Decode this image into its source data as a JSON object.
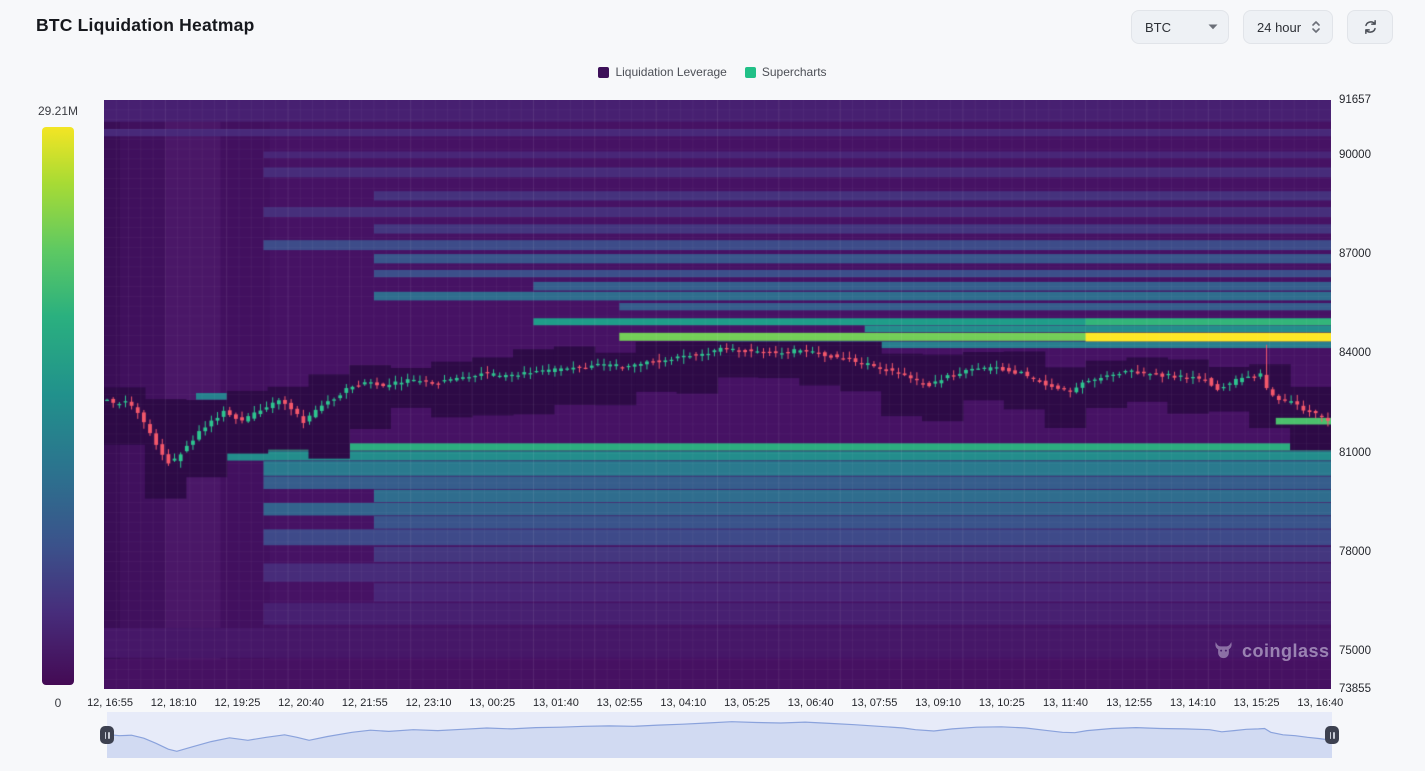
{
  "header": {
    "title": "BTC Liquidation Heatmap",
    "symbol_select": {
      "value": "BTC"
    },
    "interval_select": {
      "value": "24 hour"
    }
  },
  "legend": {
    "items": [
      {
        "label": "Liquidation Leverage",
        "color": "#3d1059"
      },
      {
        "label": "Supercharts",
        "color": "#21c087"
      }
    ]
  },
  "watermark": {
    "text": "coinglass"
  },
  "chart_data": {
    "type": "heatmap",
    "title": "BTC Liquidation Heatmap",
    "colormap": "viridis",
    "colorbar": {
      "max_label": "29.21M",
      "min_label": "0",
      "max_value": 29210000,
      "min_value": 0
    },
    "y_axis": {
      "min": 73855,
      "max": 91657,
      "ticks": [
        91657,
        90000,
        87000,
        84000,
        81000,
        78000,
        75000,
        73855
      ]
    },
    "x_labels": [
      "12, 16:55",
      "12, 18:10",
      "12, 19:25",
      "12, 20:40",
      "12, 21:55",
      "12, 23:10",
      "13, 00:25",
      "13, 01:40",
      "13, 02:55",
      "13, 04:10",
      "13, 05:25",
      "13, 06:40",
      "13, 07:55",
      "13, 09:10",
      "13, 10:25",
      "13, 11:40",
      "13, 12:55",
      "13, 14:10",
      "13, 15:25",
      "13, 16:40"
    ],
    "price_line": {
      "t": [
        0,
        0.01,
        0.02,
        0.03,
        0.04,
        0.05,
        0.057,
        0.07,
        0.085,
        0.1,
        0.115,
        0.13,
        0.145,
        0.155,
        0.165,
        0.18,
        0.2,
        0.215,
        0.23,
        0.25,
        0.27,
        0.29,
        0.31,
        0.33,
        0.35,
        0.37,
        0.39,
        0.41,
        0.43,
        0.45,
        0.47,
        0.49,
        0.51,
        0.53,
        0.55,
        0.57,
        0.59,
        0.61,
        0.63,
        0.65,
        0.66,
        0.675,
        0.69,
        0.71,
        0.73,
        0.75,
        0.765,
        0.78,
        0.79,
        0.8,
        0.82,
        0.84,
        0.86,
        0.88,
        0.9,
        0.91,
        0.92,
        0.93,
        0.94,
        0.945,
        0.95,
        0.96,
        0.97,
        0.98,
        0.99,
        1.0
      ],
      "price": [
        82650,
        82500,
        82550,
        82200,
        81600,
        80900,
        80650,
        81200,
        81800,
        82250,
        81950,
        82300,
        82600,
        82300,
        81950,
        82400,
        82900,
        83150,
        83000,
        83200,
        83100,
        83250,
        83400,
        83300,
        83450,
        83500,
        83600,
        83650,
        83600,
        83750,
        83850,
        84000,
        84150,
        84050,
        84000,
        84100,
        83950,
        83800,
        83600,
        83400,
        83200,
        83050,
        83300,
        83500,
        83550,
        83400,
        83150,
        82900,
        82850,
        83100,
        83350,
        83450,
        83350,
        83300,
        83200,
        82950,
        83100,
        83250,
        83300,
        83350,
        82900,
        82600,
        82500,
        82300,
        82150,
        81950
      ]
    },
    "spike": {
      "t": 0.9425,
      "high": 84260,
      "open": 83350,
      "close": 82950
    },
    "liquidation_bands": [
      {
        "p1": 91657,
        "p2": 91000,
        "t0": 0,
        "t1": 1,
        "v": 0.1,
        "z": 0
      },
      {
        "p1": 90780,
        "p2": 90560,
        "t0": 0,
        "t1": 1,
        "v": 0.13,
        "z": 0
      },
      {
        "p1": 90100,
        "p2": 89900,
        "t0": 0.13,
        "t1": 1,
        "v": 0.12,
        "z": 0
      },
      {
        "p1": 89620,
        "p2": 89320,
        "t0": 0.13,
        "t1": 1,
        "v": 0.14,
        "z": 0
      },
      {
        "p1": 88900,
        "p2": 88620,
        "t0": 0.22,
        "t1": 1,
        "v": 0.16,
        "z": 0
      },
      {
        "p1": 88420,
        "p2": 88120,
        "t0": 0.13,
        "t1": 1,
        "v": 0.15,
        "z": 0
      },
      {
        "p1": 87900,
        "p2": 87620,
        "t0": 0.22,
        "t1": 1,
        "v": 0.18,
        "z": 0
      },
      {
        "p1": 87420,
        "p2": 87120,
        "t0": 0.13,
        "t1": 1,
        "v": 0.26,
        "z": 0
      },
      {
        "p1": 87000,
        "p2": 86720,
        "t0": 0.22,
        "t1": 1,
        "v": 0.3,
        "z": 0
      },
      {
        "p1": 86520,
        "p2": 86300,
        "t0": 0.22,
        "t1": 1,
        "v": 0.27,
        "z": 0
      },
      {
        "p1": 86160,
        "p2": 85900,
        "t0": 0.35,
        "t1": 1,
        "v": 0.34,
        "z": 0
      },
      {
        "p1": 85860,
        "p2": 85600,
        "t0": 0.22,
        "t1": 1,
        "v": 0.4,
        "z": 0
      },
      {
        "p1": 85520,
        "p2": 85300,
        "t0": 0.42,
        "t1": 1,
        "v": 0.33,
        "z": 0
      },
      {
        "p1": 85060,
        "p2": 84850,
        "t0": 0.35,
        "t1": 1,
        "v": 0.62,
        "z": 0
      },
      {
        "p1": 85050,
        "p2": 84850,
        "t0": 0.8,
        "t1": 1,
        "v": 0.74,
        "z": 1
      },
      {
        "p1": 84840,
        "p2": 84640,
        "t0": 0.62,
        "t1": 1,
        "v": 0.55,
        "z": 0
      },
      {
        "p1": 84620,
        "p2": 84380,
        "t0": 0.42,
        "t1": 1,
        "v": 0.88,
        "z": 0
      },
      {
        "p1": 84620,
        "p2": 84360,
        "t0": 0.8,
        "t1": 1,
        "v": 1.0,
        "z": 1
      },
      {
        "p1": 84360,
        "p2": 84160,
        "t0": 0.5,
        "t1": 1,
        "v": 0.48,
        "z": 0
      },
      {
        "p1": 82800,
        "p2": 82600,
        "t0": 0.075,
        "t1": 0.3,
        "v": 0.5,
        "z": 0
      },
      {
        "p1": 81280,
        "p2": 81060,
        "t0": 0.045,
        "t1": 1,
        "v": 0.7,
        "z": 0
      },
      {
        "p1": 81040,
        "p2": 80760,
        "t0": 0.09,
        "t1": 1,
        "v": 0.55,
        "z": 0
      },
      {
        "p1": 80740,
        "p2": 80300,
        "t0": 0.13,
        "t1": 1,
        "v": 0.46,
        "z": 0
      },
      {
        "p1": 80280,
        "p2": 79900,
        "t0": 0.13,
        "t1": 1,
        "v": 0.33,
        "z": 0
      },
      {
        "p1": 79880,
        "p2": 79500,
        "t0": 0.22,
        "t1": 1,
        "v": 0.4,
        "z": 0
      },
      {
        "p1": 79480,
        "p2": 79100,
        "t0": 0.13,
        "t1": 1,
        "v": 0.36,
        "z": 0
      },
      {
        "p1": 79080,
        "p2": 78700,
        "t0": 0.22,
        "t1": 1,
        "v": 0.29,
        "z": 0
      },
      {
        "p1": 78680,
        "p2": 78200,
        "t0": 0.13,
        "t1": 1,
        "v": 0.25,
        "z": 0
      },
      {
        "p1": 78150,
        "p2": 77700,
        "t0": 0.22,
        "t1": 1,
        "v": 0.18,
        "z": 0
      },
      {
        "p1": 77650,
        "p2": 77100,
        "t0": 0.13,
        "t1": 1,
        "v": 0.14,
        "z": 0
      },
      {
        "p1": 77050,
        "p2": 76500,
        "t0": 0.22,
        "t1": 1,
        "v": 0.12,
        "z": 0
      },
      {
        "p1": 76450,
        "p2": 75800,
        "t0": 0.13,
        "t1": 1,
        "v": 0.1,
        "z": 0
      },
      {
        "p1": 75700,
        "p2": 74800,
        "t0": 0,
        "t1": 1,
        "v": 0.07,
        "z": 0
      },
      {
        "p1": 74750,
        "p2": 73855,
        "t0": 0,
        "t1": 1,
        "v": 0.05,
        "z": 0
      },
      {
        "p1": 82050,
        "p2": 81850,
        "t0": 0.955,
        "t1": 1,
        "v": 0.8,
        "z": 1
      }
    ],
    "candle_up_color": "#2ec48f",
    "candle_down_color": "#f4586b"
  }
}
